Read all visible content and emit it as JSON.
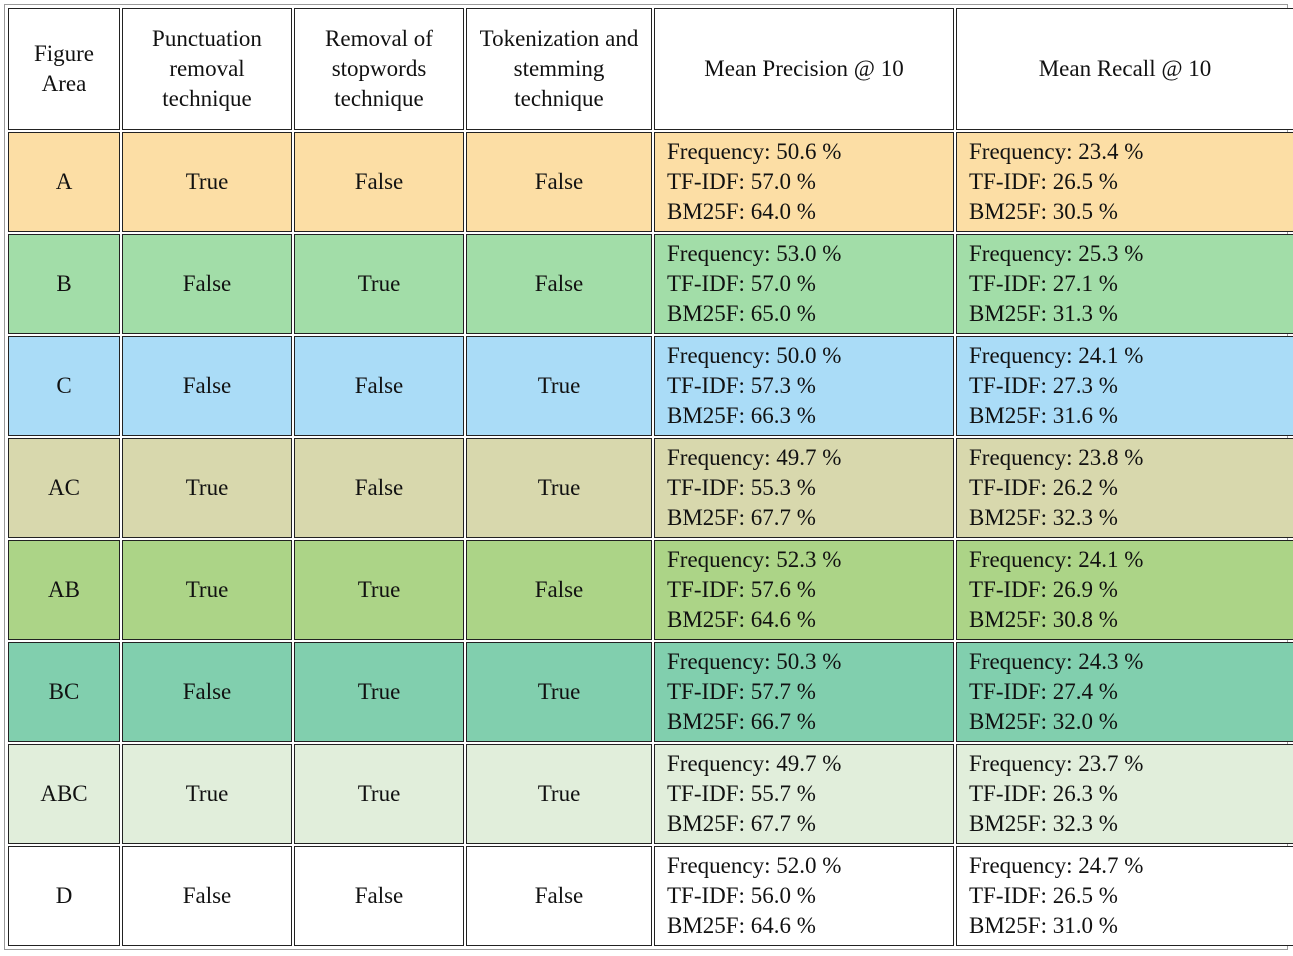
{
  "table": {
    "headers": [
      "Figure Area",
      "Punctuation removal technique",
      "Removal of stopwords technique",
      "Tokenization and stemming technique",
      "Mean Precision @ 10",
      "Mean Recall @ 10"
    ],
    "rows": [
      {
        "area": "A",
        "punct": "True",
        "stop": "False",
        "token": "False",
        "color": "#fcdea5",
        "precision": [
          "Frequency: 50.6 %",
          "TF-IDF: 57.0 %",
          "BM25F: 64.0 %"
        ],
        "recall": [
          "Frequency: 23.4 %",
          "TF-IDF: 26.5 %",
          "BM25F: 30.5 %"
        ]
      },
      {
        "area": "B",
        "punct": "False",
        "stop": "True",
        "token": "False",
        "color": "#a2dda8",
        "precision": [
          "Frequency: 53.0 %",
          "TF-IDF: 57.0 %",
          "BM25F: 65.0 %"
        ],
        "recall": [
          "Frequency: 25.3 %",
          "TF-IDF: 27.1 %",
          "BM25F: 31.3 %"
        ]
      },
      {
        "area": "C",
        "punct": "False",
        "stop": "False",
        "token": "True",
        "color": "#aadcf7",
        "precision": [
          "Frequency: 50.0 %",
          "TF-IDF: 57.3 %",
          "BM25F: 66.3 %"
        ],
        "recall": [
          "Frequency: 24.1 %",
          "TF-IDF: 27.3 %",
          "BM25F: 31.6 %"
        ]
      },
      {
        "area": "AC",
        "punct": "True",
        "stop": "False",
        "token": "True",
        "color": "#d8d8ad",
        "precision": [
          "Frequency: 49.7 %",
          "TF-IDF: 55.3 %",
          "BM25F: 67.7 %"
        ],
        "recall": [
          "Frequency: 23.8 %",
          "TF-IDF: 26.2 %",
          "BM25F: 32.3 %"
        ]
      },
      {
        "area": "AB",
        "punct": "True",
        "stop": "True",
        "token": "False",
        "color": "#acd487",
        "precision": [
          "Frequency: 52.3 %",
          "TF-IDF: 57.6 %",
          "BM25F: 64.6 %"
        ],
        "recall": [
          "Frequency: 24.1 %",
          "TF-IDF: 26.9 %",
          "BM25F: 30.8 %"
        ]
      },
      {
        "area": "BC",
        "punct": "False",
        "stop": "True",
        "token": "True",
        "color": "#81cfae",
        "precision": [
          "Frequency: 50.3 %",
          "TF-IDF: 57.7 %",
          "BM25F: 66.7 %"
        ],
        "recall": [
          "Frequency: 24.3 %",
          "TF-IDF: 27.4 %",
          "BM25F: 32.0 %"
        ]
      },
      {
        "area": "ABC",
        "punct": "True",
        "stop": "True",
        "token": "True",
        "color": "#e1eedb",
        "precision": [
          "Frequency: 49.7 %",
          "TF-IDF: 55.7 %",
          "BM25F: 67.7 %"
        ],
        "recall": [
          "Frequency: 23.7 %",
          "TF-IDF: 26.3 %",
          "BM25F: 32.3 %"
        ]
      },
      {
        "area": "D",
        "punct": "False",
        "stop": "False",
        "token": "False",
        "color": "#ffffff",
        "precision": [
          "Frequency: 52.0 %",
          "TF-IDF: 56.0 %",
          "BM25F: 64.6 %"
        ],
        "recall": [
          "Frequency: 24.7 %",
          "TF-IDF: 26.5 %",
          "BM25F: 31.0 %"
        ]
      }
    ]
  }
}
